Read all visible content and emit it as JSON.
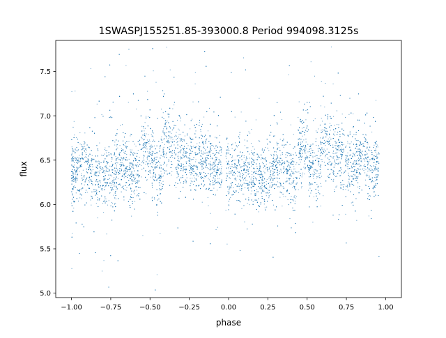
{
  "chart_data": {
    "type": "scatter",
    "title": "1SWASPJ155251.85-393000.8 Period 994098.3125s",
    "xlabel": "phase",
    "ylabel": "flux",
    "xlim": [
      -1.1,
      1.1
    ],
    "ylim": [
      4.95,
      7.85
    ],
    "xticks": [
      {
        "value": -1.0,
        "label": "−1.00"
      },
      {
        "value": -0.75,
        "label": "−0.75"
      },
      {
        "value": -0.5,
        "label": "−0.50"
      },
      {
        "value": -0.25,
        "label": "−0.25"
      },
      {
        "value": 0.0,
        "label": "0.00"
      },
      {
        "value": 0.25,
        "label": "0.25"
      },
      {
        "value": 0.5,
        "label": "0.50"
      },
      {
        "value": 0.75,
        "label": "0.75"
      },
      {
        "value": 1.0,
        "label": "1.00"
      }
    ],
    "yticks": [
      {
        "value": 5.0,
        "label": "5.0"
      },
      {
        "value": 5.5,
        "label": "5.5"
      },
      {
        "value": 6.0,
        "label": "6.0"
      },
      {
        "value": 6.5,
        "label": "6.5"
      },
      {
        "value": 7.0,
        "label": "7.0"
      },
      {
        "value": 7.5,
        "label": "7.5"
      }
    ],
    "grid": false,
    "marker_color": "#1f77b4",
    "series": [
      {
        "x": [
          -1.0,
          1.0
        ],
        "y_center": 6.4,
        "y_spread": 0.18,
        "point_count": 9000,
        "clusters": [
          {
            "x": -0.98,
            "y": 6.35
          },
          {
            "x": -0.9,
            "y": 6.38
          },
          {
            "x": -0.82,
            "y": 6.32
          },
          {
            "x": -0.75,
            "y": 6.3
          },
          {
            "x": -0.68,
            "y": 6.42
          },
          {
            "x": -0.6,
            "y": 6.35
          },
          {
            "x": -0.52,
            "y": 6.62
          },
          {
            "x": -0.45,
            "y": 6.4
          },
          {
            "x": -0.38,
            "y": 6.68
          },
          {
            "x": -0.3,
            "y": 6.55
          },
          {
            "x": -0.22,
            "y": 6.45
          },
          {
            "x": -0.15,
            "y": 6.5
          },
          {
            "x": -0.08,
            "y": 6.42
          },
          {
            "x": 0.02,
            "y": 6.35
          },
          {
            "x": 0.1,
            "y": 6.38
          },
          {
            "x": 0.18,
            "y": 6.32
          },
          {
            "x": 0.25,
            "y": 6.3
          },
          {
            "x": 0.32,
            "y": 6.42
          },
          {
            "x": 0.4,
            "y": 6.35
          },
          {
            "x": 0.48,
            "y": 6.62
          },
          {
            "x": 0.55,
            "y": 6.4
          },
          {
            "x": 0.62,
            "y": 6.68
          },
          {
            "x": 0.7,
            "y": 6.55
          },
          {
            "x": 0.78,
            "y": 6.45
          },
          {
            "x": 0.85,
            "y": 6.5
          },
          {
            "x": 0.92,
            "y": 6.42
          }
        ]
      }
    ]
  }
}
